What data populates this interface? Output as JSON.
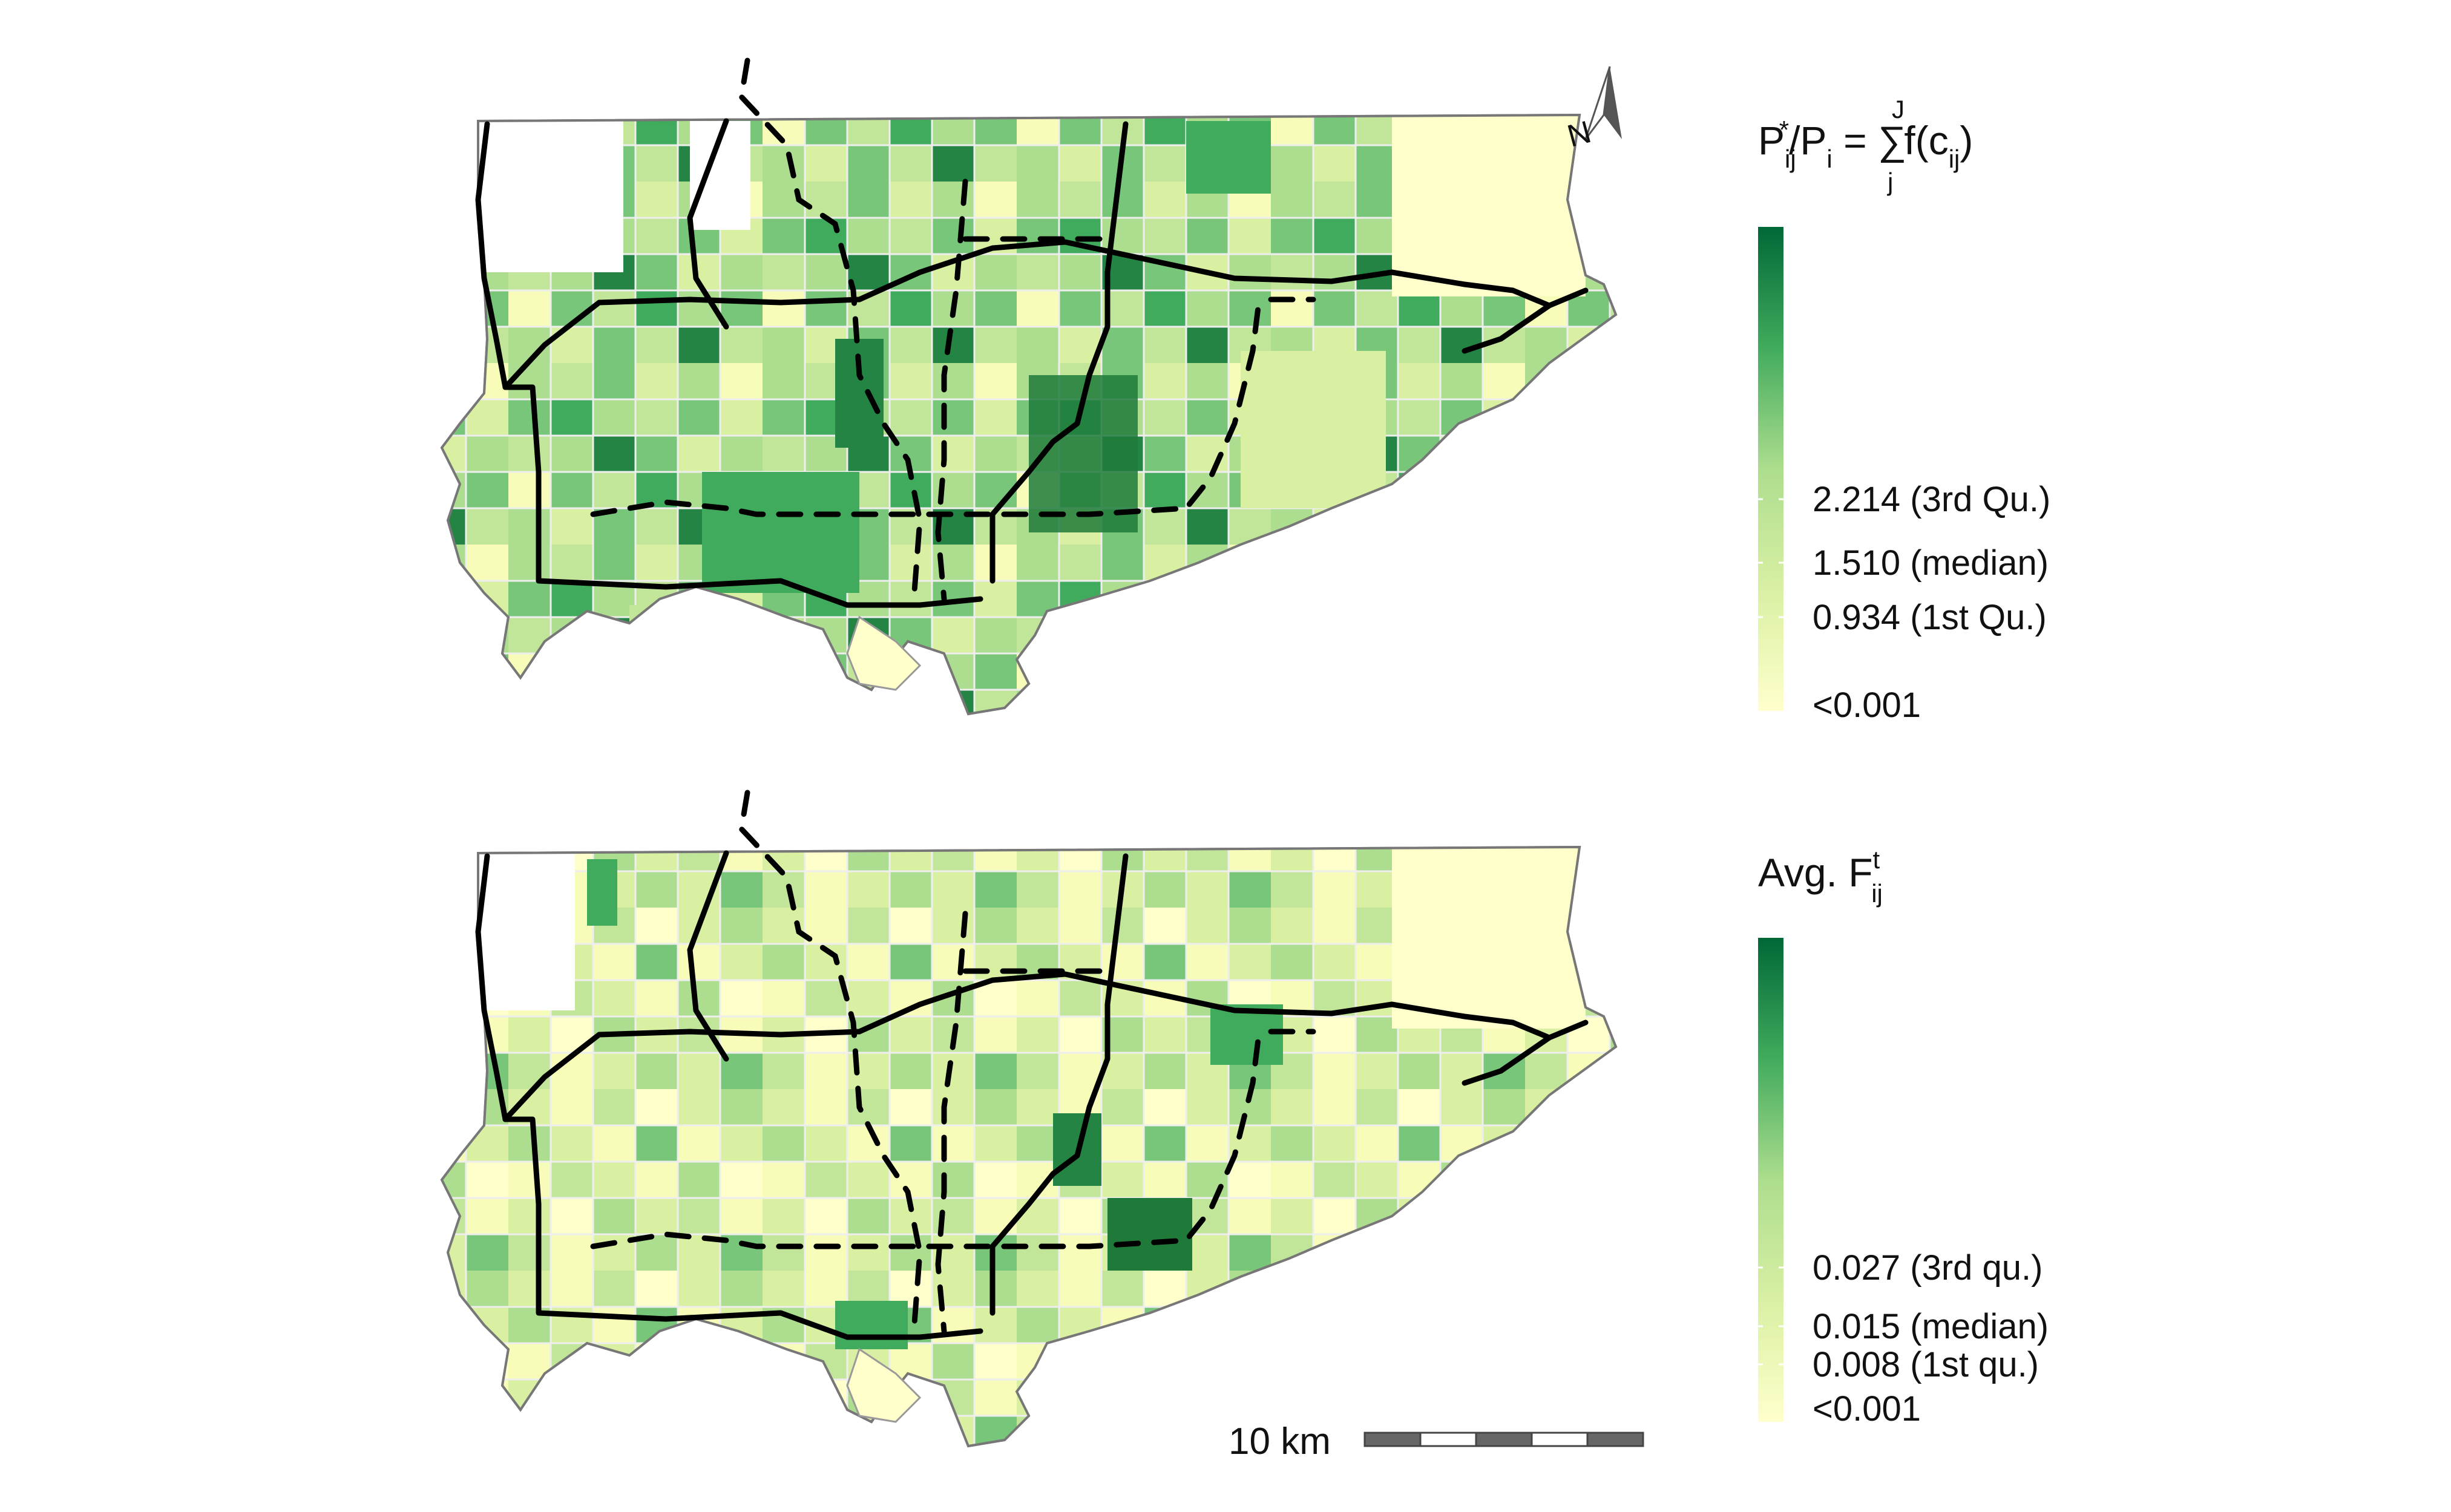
{
  "top_panel": {
    "legend": {
      "title_parts": {
        "P": "P",
        "ij": "ij",
        "star": "*",
        "slash": "/P",
        "i": "i",
        "eq": " = ",
        "sum": "∑",
        "J": "J",
        "j": "j",
        "f": "f(c",
        "cij": "ij",
        "close": ")"
      },
      "labels": [
        {
          "text": "2.214 (3rd Qu.)",
          "value": 2.214
        },
        {
          "text": "1.510 (median)",
          "value": 1.51
        },
        {
          "text": "0.934 (1st Qu.)",
          "value": 0.934
        },
        {
          "text": "<0.001",
          "value": 0.001
        }
      ]
    }
  },
  "bottom_panel": {
    "legend": {
      "title_parts": {
        "avg": "Avg. F",
        "t": "t",
        "ij": "ij"
      },
      "labels": [
        {
          "text": "0.027 (3rd qu.)",
          "value": 0.027
        },
        {
          "text": "0.015 (median)",
          "value": 0.015
        },
        {
          "text": "0.008 (1st qu.)",
          "value": 0.008
        },
        {
          "text": "<0.001",
          "value": 0.001
        }
      ]
    }
  },
  "north_arrow": {
    "label": "N"
  },
  "scale_bar": {
    "label": "10 km",
    "segments": 5
  },
  "colors": {
    "ramp_light": "#ffffcc",
    "ramp_dark": "#006837",
    "road_line": "#000000",
    "boundary": "#9a9a9a"
  }
}
